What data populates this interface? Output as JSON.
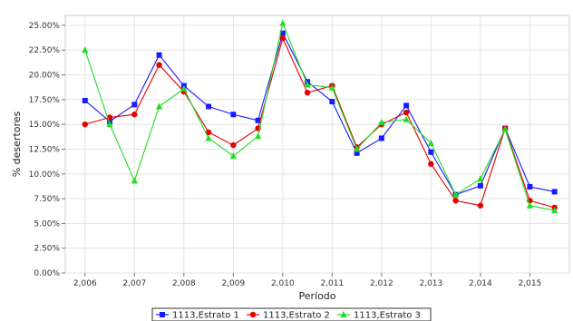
{
  "chart_data": {
    "type": "line",
    "xlabel": "Período",
    "ylabel": "% desertores",
    "xlim": [
      2005.6,
      2015.8
    ],
    "ylim": [
      0,
      26
    ],
    "x_ticks": [
      2006,
      2007,
      2008,
      2009,
      2010,
      2011,
      2012,
      2013,
      2014,
      2015
    ],
    "x_tick_labels": [
      "2,006",
      "2,007",
      "2,008",
      "2,009",
      "2,010",
      "2,011",
      "2,012",
      "2,013",
      "2,014",
      "2,015"
    ],
    "y_ticks": [
      0,
      2.5,
      5,
      7.5,
      10,
      12.5,
      15,
      17.5,
      20,
      22.5,
      25
    ],
    "y_tick_labels": [
      "0.00%",
      "2.50%",
      "5.00%",
      "7.50%",
      "10.00%",
      "12.50%",
      "15.00%",
      "17.50%",
      "20.00%",
      "22.50%",
      "25.00%"
    ],
    "grid": true,
    "legend_position": "bottom",
    "x": [
      2006,
      2006.5,
      2007,
      2007.5,
      2008,
      2008.5,
      2009,
      2009.5,
      2010,
      2010.5,
      2011,
      2011.5,
      2012,
      2012.5,
      2013,
      2013.5,
      2014,
      2014.5,
      2015,
      2015.5
    ],
    "series": [
      {
        "name": "1113,Estrato 1",
        "color": "#1a1aff",
        "marker": "square",
        "values": [
          17.4,
          15.3,
          17.0,
          22.0,
          18.9,
          16.8,
          16.0,
          15.4,
          24.2,
          19.3,
          17.3,
          12.1,
          13.6,
          16.9,
          12.2,
          7.9,
          8.8,
          14.6,
          8.7,
          8.2
        ]
      },
      {
        "name": "1113,Estrato 2",
        "color": "#e60000",
        "marker": "circle",
        "values": [
          15.0,
          15.7,
          16.0,
          21.0,
          18.3,
          14.2,
          12.9,
          14.6,
          23.7,
          18.2,
          18.9,
          12.7,
          15.0,
          16.2,
          11.0,
          7.3,
          6.8,
          14.6,
          7.3,
          6.6
        ]
      },
      {
        "name": "1113,Estrato 3",
        "color": "#22dd22",
        "marker": "triangle",
        "values": [
          22.5,
          15.0,
          9.3,
          16.8,
          18.6,
          13.6,
          11.8,
          13.8,
          25.2,
          19.0,
          18.7,
          12.5,
          15.2,
          15.5,
          13.1,
          7.9,
          9.5,
          14.5,
          6.8,
          6.3
        ]
      }
    ]
  }
}
